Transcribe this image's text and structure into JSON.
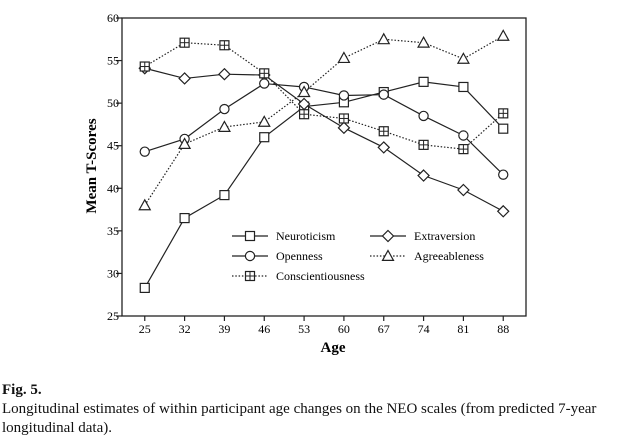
{
  "figure": {
    "label": "Fig. 5.",
    "caption": "Longitudinal estimates of within participant age changes on the NEO scales (from predicted 7-year longitudinal data)."
  },
  "chart_data": {
    "type": "line",
    "xlabel": "Age",
    "ylabel": "Mean T-Scores",
    "x": [
      25,
      32,
      39,
      46,
      53,
      60,
      67,
      74,
      81,
      88
    ],
    "xlim": [
      21,
      92
    ],
    "ylim": [
      25,
      60
    ],
    "yticks": [
      25,
      30,
      35,
      40,
      45,
      50,
      55,
      60
    ],
    "grid": false,
    "legend_position": "center-bottom",
    "series": [
      {
        "name": "Neuroticism",
        "marker": "square",
        "line": "solid",
        "values": [
          28.3,
          36.5,
          39.2,
          46.0,
          49.6,
          50.1,
          51.3,
          52.5,
          51.9,
          47.0
        ]
      },
      {
        "name": "Extraversion",
        "marker": "diamond",
        "line": "solid",
        "values": [
          54.1,
          52.9,
          53.4,
          53.3,
          49.9,
          47.1,
          44.8,
          41.5,
          39.8,
          37.3
        ]
      },
      {
        "name": "Openness",
        "marker": "circle",
        "line": "solid",
        "values": [
          44.3,
          45.8,
          49.3,
          52.3,
          51.9,
          50.9,
          51.0,
          48.5,
          46.2,
          41.6
        ]
      },
      {
        "name": "Agreeableness",
        "marker": "triangle",
        "line": "dotted",
        "values": [
          38.0,
          45.2,
          47.2,
          47.8,
          51.3,
          55.3,
          57.5,
          57.1,
          55.2,
          57.9
        ]
      },
      {
        "name": "Conscientiousness",
        "marker": "boxplus",
        "line": "dotted",
        "values": [
          54.3,
          57.1,
          56.8,
          53.5,
          48.7,
          48.2,
          46.7,
          45.1,
          44.6,
          48.8
        ]
      }
    ]
  }
}
